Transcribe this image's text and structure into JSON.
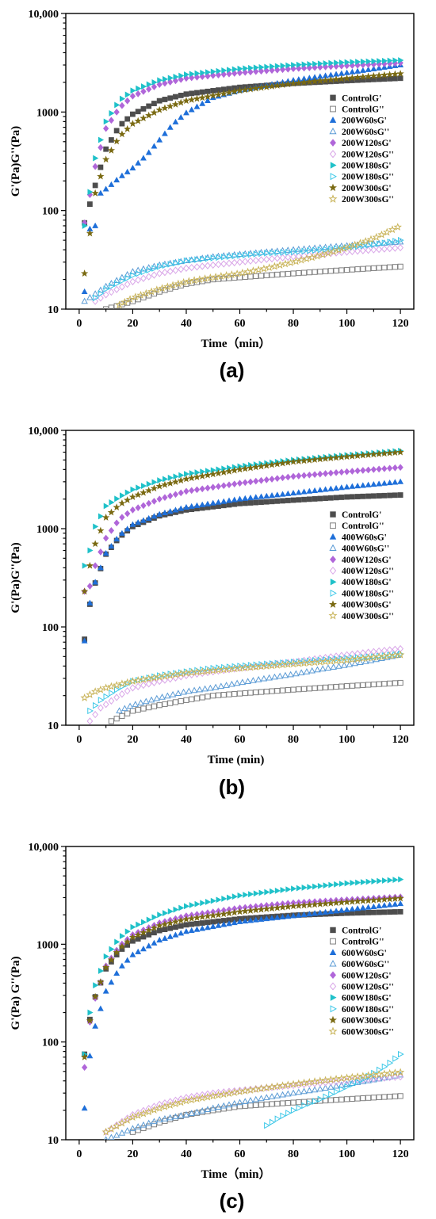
{
  "chart_data": [
    {
      "type": "scatter",
      "panel": "(a)",
      "xlabel": "Time（min）",
      "ylabel": "G'(Pa)G''(Pa)",
      "xlim": [
        -5,
        125
      ],
      "ylim": [
        10,
        10000
      ],
      "yscale": "log",
      "xticks": [
        "0",
        "20",
        "40",
        "60",
        "80",
        "100",
        "120"
      ],
      "yticks": [
        "10",
        "100",
        "1000",
        "10,000"
      ],
      "legend": "right-middle",
      "series": [
        {
          "name": "ControlG'",
          "marker": "square",
          "filled": true,
          "color": "#4d4d4d",
          "x": [
            2,
            6,
            10,
            15,
            20,
            30,
            40,
            60,
            80,
            100,
            120
          ],
          "y": [
            75,
            180,
            420,
            720,
            950,
            1300,
            1520,
            1780,
            1950,
            2080,
            2200
          ]
        },
        {
          "name": "ControlG''",
          "marker": "square",
          "filled": false,
          "color": "#808080",
          "x": [
            10,
            20,
            30,
            40,
            50,
            60,
            70,
            80,
            90,
            100,
            110,
            120
          ],
          "y": [
            10,
            12,
            15,
            18,
            20,
            21,
            22,
            23,
            24,
            25,
            26,
            27
          ]
        },
        {
          "name": "200W60sG'",
          "marker": "triangle-up",
          "filled": true,
          "color": "#1e6fd9",
          "x": [
            2,
            4,
            6,
            8,
            10,
            15,
            20,
            25,
            30,
            35,
            40,
            50,
            60,
            80,
            100,
            120
          ],
          "y": [
            15,
            65,
            70,
            150,
            165,
            215,
            270,
            360,
            520,
            750,
            980,
            1400,
            1650,
            2100,
            2500,
            3000
          ]
        },
        {
          "name": "200W60sG''",
          "marker": "triangle-up",
          "filled": false,
          "color": "#5b9bd5",
          "x": [
            2,
            10,
            20,
            30,
            40,
            50,
            60,
            70,
            80,
            90,
            100,
            110,
            120
          ],
          "y": [
            12,
            17,
            24,
            28,
            31,
            34,
            36,
            38,
            40,
            42,
            44,
            46,
            48
          ]
        },
        {
          "name": "200W120sG'",
          "marker": "diamond",
          "filled": true,
          "color": "#b066d9",
          "x": [
            2,
            6,
            10,
            15,
            20,
            30,
            40,
            60,
            80,
            100,
            120
          ],
          "y": [
            75,
            280,
            680,
            1100,
            1450,
            1900,
            2200,
            2500,
            2750,
            2950,
            3150
          ]
        },
        {
          "name": "200W120sG''",
          "marker": "diamond",
          "filled": false,
          "color": "#d9a6e8",
          "x": [
            6,
            10,
            20,
            30,
            40,
            50,
            60,
            70,
            80,
            90,
            100,
            110,
            120
          ],
          "y": [
            12,
            14,
            19,
            23,
            26,
            28,
            30,
            32,
            34,
            36,
            38,
            40,
            42
          ]
        },
        {
          "name": "200W180sG'",
          "marker": "triangle-right",
          "filled": true,
          "color": "#1fc1c9",
          "x": [
            2,
            6,
            10,
            15,
            20,
            30,
            40,
            60,
            80,
            100,
            120
          ],
          "y": [
            70,
            340,
            800,
            1300,
            1650,
            2100,
            2400,
            2750,
            3000,
            3200,
            3350
          ]
        },
        {
          "name": "200W180sG''",
          "marker": "triangle-right",
          "filled": false,
          "color": "#3ec8e8",
          "x": [
            6,
            10,
            20,
            30,
            40,
            50,
            60,
            70,
            80,
            90,
            100,
            110,
            120
          ],
          "y": [
            13,
            16,
            22,
            27,
            31,
            33,
            35,
            37,
            38,
            40,
            42,
            45,
            50
          ]
        },
        {
          "name": "200W300sG'",
          "marker": "star",
          "filled": true,
          "color": "#7a6a12",
          "x": [
            2,
            6,
            10,
            15,
            20,
            30,
            40,
            60,
            80,
            100,
            120
          ],
          "y": [
            23,
            150,
            330,
            560,
            760,
            1050,
            1300,
            1650,
            1950,
            2200,
            2450
          ]
        },
        {
          "name": "200W300sG''",
          "marker": "star",
          "filled": false,
          "color": "#c9b45a",
          "x": [
            15,
            20,
            30,
            40,
            50,
            60,
            70,
            80,
            90,
            100,
            110,
            120
          ],
          "y": [
            11,
            13,
            16,
            19,
            21,
            23,
            26,
            30,
            35,
            42,
            52,
            70
          ]
        }
      ]
    },
    {
      "type": "scatter",
      "panel": "(b)",
      "xlabel": "Time (min)",
      "ylabel": "G'(Pa)G''(Pa)",
      "xlim": [
        -5,
        125
      ],
      "ylim": [
        10,
        10000
      ],
      "yscale": "log",
      "xticks": [
        "0",
        "20",
        "40",
        "60",
        "80",
        "100",
        "120"
      ],
      "yticks": [
        "10",
        "100",
        "1000",
        "10,000"
      ],
      "legend": "right-middle",
      "series": [
        {
          "name": "ControlG'",
          "marker": "square",
          "filled": true,
          "color": "#4d4d4d",
          "x": [
            2,
            4,
            6,
            10,
            15,
            20,
            30,
            40,
            60,
            80,
            100,
            120
          ],
          "y": [
            75,
            170,
            280,
            550,
            820,
            1050,
            1350,
            1550,
            1800,
            1950,
            2100,
            2200
          ]
        },
        {
          "name": "ControlG''",
          "marker": "square",
          "filled": false,
          "color": "#808080",
          "x": [
            12,
            20,
            30,
            40,
            50,
            60,
            70,
            80,
            90,
            100,
            110,
            120
          ],
          "y": [
            11,
            14,
            16,
            18,
            20,
            21,
            22,
            23,
            24,
            25,
            26,
            27
          ]
        },
        {
          "name": "400W60sG'",
          "marker": "triangle-up",
          "filled": true,
          "color": "#1e6fd9",
          "x": [
            2,
            4,
            6,
            10,
            15,
            20,
            30,
            40,
            60,
            80,
            100,
            120
          ],
          "y": [
            72,
            175,
            285,
            560,
            850,
            1100,
            1400,
            1650,
            2000,
            2300,
            2650,
            3000
          ]
        },
        {
          "name": "400W60sG''",
          "marker": "triangle-up",
          "filled": false,
          "color": "#5b9bd5",
          "x": [
            15,
            20,
            30,
            40,
            50,
            60,
            70,
            80,
            90,
            100,
            110,
            120
          ],
          "y": [
            14,
            16,
            19,
            22,
            24,
            27,
            30,
            33,
            37,
            41,
            46,
            52
          ]
        },
        {
          "name": "400W120sG'",
          "marker": "diamond",
          "filled": true,
          "color": "#b066d9",
          "x": [
            2,
            4,
            6,
            10,
            15,
            20,
            30,
            40,
            60,
            80,
            100,
            120
          ],
          "y": [
            230,
            260,
            420,
            800,
            1250,
            1550,
            2000,
            2400,
            2900,
            3400,
            3800,
            4200
          ]
        },
        {
          "name": "400W120sG''",
          "marker": "diamond",
          "filled": false,
          "color": "#d9a6e8",
          "x": [
            4,
            8,
            15,
            20,
            30,
            40,
            50,
            60,
            70,
            80,
            90,
            100,
            110,
            120
          ],
          "y": [
            11,
            15,
            20,
            24,
            28,
            32,
            35,
            38,
            41,
            44,
            48,
            52,
            56,
            60
          ]
        },
        {
          "name": "400W180sG'",
          "marker": "triangle-right",
          "filled": true,
          "color": "#1fc1c9",
          "x": [
            2,
            4,
            6,
            10,
            15,
            20,
            30,
            40,
            60,
            80,
            100,
            120
          ],
          "y": [
            420,
            600,
            1050,
            1700,
            2100,
            2500,
            3100,
            3600,
            4300,
            5000,
            5600,
            6200
          ]
        },
        {
          "name": "400W180sG''",
          "marker": "triangle-right",
          "filled": false,
          "color": "#3ec8e8",
          "x": [
            4,
            8,
            15,
            20,
            30,
            40,
            50,
            60,
            70,
            80,
            90,
            100,
            110,
            120
          ],
          "y": [
            14,
            18,
            24,
            28,
            32,
            35,
            38,
            40,
            42,
            44,
            46,
            48,
            50,
            53
          ]
        },
        {
          "name": "400W300sG'",
          "marker": "star",
          "filled": true,
          "color": "#7a6a12",
          "x": [
            2,
            4,
            6,
            10,
            15,
            20,
            30,
            40,
            60,
            80,
            100,
            120
          ],
          "y": [
            230,
            420,
            700,
            1300,
            1750,
            2100,
            2700,
            3200,
            4000,
            4800,
            5400,
            6000
          ]
        },
        {
          "name": "400W300sG''",
          "marker": "star",
          "filled": false,
          "color": "#c9b45a",
          "x": [
            2,
            6,
            10,
            15,
            20,
            30,
            40,
            50,
            60,
            70,
            80,
            90,
            100,
            110,
            120
          ],
          "y": [
            19,
            22,
            24,
            26,
            28,
            31,
            34,
            36,
            38,
            40,
            42,
            44,
            46,
            49,
            52
          ]
        }
      ]
    },
    {
      "type": "scatter",
      "panel": "(c)",
      "xlabel": "Time（min）",
      "ylabel": "G'(Pa)  G''(Pa)",
      "xlim": [
        -5,
        125
      ],
      "ylim": [
        10,
        10000
      ],
      "yscale": "log",
      "xticks": [
        "0",
        "20",
        "40",
        "60",
        "80",
        "100",
        "120"
      ],
      "yticks": [
        "10",
        "100",
        "1000",
        "10,000"
      ],
      "legend": "right-middle",
      "series": [
        {
          "name": "ControlG'",
          "marker": "square",
          "filled": true,
          "color": "#4d4d4d",
          "x": [
            2,
            4,
            6,
            10,
            15,
            20,
            30,
            40,
            60,
            80,
            100,
            120
          ],
          "y": [
            75,
            170,
            290,
            560,
            850,
            1080,
            1380,
            1580,
            1820,
            1980,
            2080,
            2150
          ]
        },
        {
          "name": "ControlG''",
          "marker": "square",
          "filled": false,
          "color": "#808080",
          "x": [
            20,
            30,
            40,
            50,
            60,
            70,
            80,
            90,
            100,
            110,
            120
          ],
          "y": [
            12,
            15,
            18,
            20,
            22,
            23,
            24,
            25,
            26,
            27,
            28
          ]
        },
        {
          "name": "600W60sG'",
          "marker": "triangle-up",
          "filled": true,
          "color": "#1e6fd9",
          "x": [
            2,
            4,
            6,
            10,
            15,
            20,
            30,
            40,
            60,
            80,
            100,
            120
          ],
          "y": [
            21,
            72,
            145,
            330,
            560,
            780,
            1100,
            1350,
            1700,
            1950,
            2250,
            2600
          ]
        },
        {
          "name": "600W60sG''",
          "marker": "triangle-up",
          "filled": false,
          "color": "#5b9bd5",
          "x": [
            10,
            20,
            30,
            40,
            50,
            60,
            70,
            80,
            90,
            100,
            110,
            120
          ],
          "y": [
            10,
            13,
            16,
            18,
            21,
            24,
            27,
            30,
            33,
            37,
            41,
            46
          ]
        },
        {
          "name": "600W120sG'",
          "marker": "diamond",
          "filled": true,
          "color": "#b066d9",
          "x": [
            2,
            4,
            6,
            10,
            15,
            20,
            30,
            40,
            60,
            80,
            100,
            120
          ],
          "y": [
            55,
            160,
            280,
            600,
            950,
            1250,
            1650,
            1950,
            2350,
            2650,
            2850,
            3050
          ]
        },
        {
          "name": "600W120sG''",
          "marker": "diamond",
          "filled": false,
          "color": "#d9a6e8",
          "x": [
            10,
            20,
            30,
            40,
            50,
            60,
            70,
            80,
            90,
            100,
            110,
            120
          ],
          "y": [
            12,
            18,
            23,
            27,
            30,
            32,
            34,
            36,
            38,
            40,
            42,
            44
          ]
        },
        {
          "name": "600W180sG'",
          "marker": "triangle-right",
          "filled": true,
          "color": "#1fc1c9",
          "x": [
            2,
            4,
            6,
            10,
            15,
            20,
            30,
            40,
            60,
            80,
            100,
            120
          ],
          "y": [
            75,
            200,
            380,
            750,
            1150,
            1500,
            2000,
            2450,
            3150,
            3700,
            4200,
            4600
          ]
        },
        {
          "name": "600W180sG''",
          "marker": "triangle-right",
          "filled": false,
          "color": "#3ec8e8",
          "x": [
            70,
            75,
            80,
            85,
            90,
            95,
            100,
            105,
            110,
            115,
            120
          ],
          "y": [
            14,
            17,
            20,
            23,
            26,
            30,
            35,
            40,
            48,
            58,
            75
          ]
        },
        {
          "name": "600W300sG'",
          "marker": "star",
          "filled": true,
          "color": "#7a6a12",
          "x": [
            2,
            4,
            6,
            10,
            15,
            20,
            30,
            40,
            60,
            80,
            100,
            120
          ],
          "y": [
            70,
            165,
            290,
            580,
            900,
            1180,
            1550,
            1800,
            2150,
            2450,
            2700,
            2950
          ]
        },
        {
          "name": "600W300sG''",
          "marker": "star",
          "filled": false,
          "color": "#c9b45a",
          "x": [
            10,
            20,
            30,
            40,
            50,
            60,
            70,
            80,
            90,
            100,
            110,
            120
          ],
          "y": [
            12,
            17,
            21,
            25,
            28,
            31,
            34,
            37,
            40,
            43,
            46,
            49
          ]
        }
      ]
    }
  ]
}
